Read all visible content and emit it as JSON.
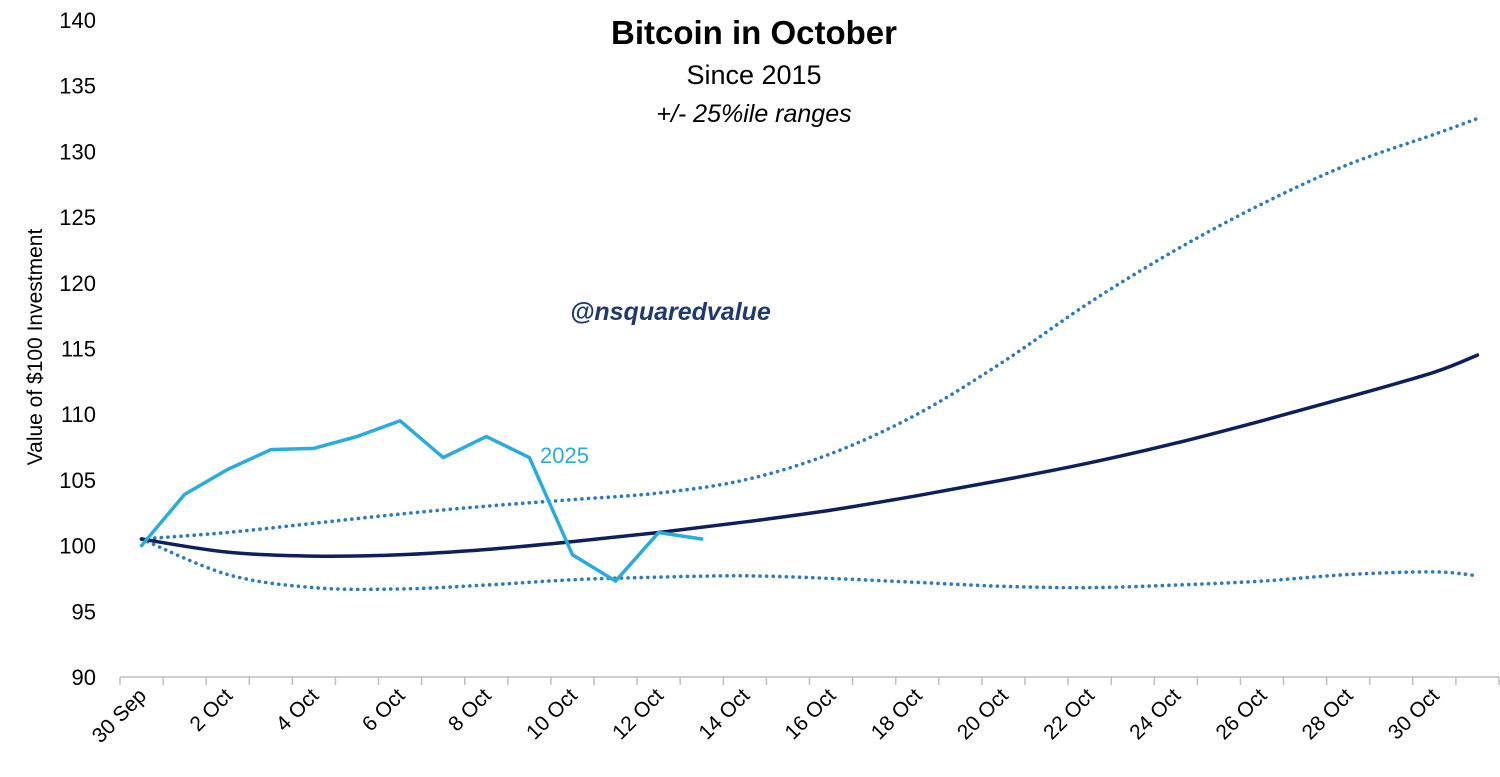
{
  "chart_data": {
    "type": "line",
    "title": "Bitcoin in October",
    "subtitle": "Since 2015",
    "note": "+/- 25%ile ranges",
    "watermark": "@nsquaredvalue",
    "ylabel": "Value of $100 Investment",
    "xlabel": "",
    "ylim": [
      90,
      140
    ],
    "yticks": [
      90,
      95,
      100,
      105,
      110,
      115,
      120,
      125,
      130,
      135,
      140
    ],
    "xlim": [
      "30 Sep",
      "31 Oct"
    ],
    "xtick_labels": [
      "30 Sep",
      "2 Oct",
      "4 Oct",
      "6 Oct",
      "8 Oct",
      "10 Oct",
      "12 Oct",
      "14 Oct",
      "16 Oct",
      "18 Oct",
      "20 Oct",
      "22 Oct",
      "24 Oct",
      "26 Oct",
      "28 Oct",
      "30 Oct"
    ],
    "grid": false,
    "legend": "none",
    "series": [
      {
        "name": "2025",
        "label_on_chart": "2025",
        "color": "#29abe2",
        "style": "solid",
        "x": [
          "30 Sep",
          "1 Oct",
          "2 Oct",
          "3 Oct",
          "4 Oct",
          "5 Oct",
          "6 Oct",
          "7 Oct",
          "8 Oct",
          "9 Oct",
          "10 Oct",
          "11 Oct",
          "12 Oct",
          "13 Oct"
        ],
        "values": [
          100.0,
          103.9,
          105.8,
          107.3,
          107.4,
          108.3,
          109.5,
          106.7,
          108.3,
          106.7,
          99.3,
          97.3,
          101.0,
          100.5
        ]
      },
      {
        "color": "#0d1f5c",
        "style": "solid",
        "x": [
          "30 Sep",
          "2 Oct",
          "4 Oct",
          "6 Oct",
          "8 Oct",
          "10 Oct",
          "12 Oct",
          "14 Oct",
          "16 Oct",
          "18 Oct",
          "20 Oct",
          "22 Oct",
          "24 Oct",
          "26 Oct",
          "28 Oct",
          "30 Oct",
          "31 Oct"
        ],
        "values": [
          100.5,
          99.5,
          99.2,
          99.3,
          99.7,
          100.3,
          101.0,
          101.8,
          102.7,
          103.8,
          105.0,
          106.3,
          107.8,
          109.5,
          111.3,
          113.2,
          114.5
        ]
      },
      {
        "color": "#2b7bc0",
        "style": "dotted",
        "x": [
          "30 Sep",
          "2 Oct",
          "4 Oct",
          "6 Oct",
          "8 Oct",
          "10 Oct",
          "12 Oct",
          "14 Oct",
          "16 Oct",
          "18 Oct",
          "20 Oct",
          "22 Oct",
          "24 Oct",
          "26 Oct",
          "28 Oct",
          "30 Oct",
          "31 Oct"
        ],
        "values": [
          100.5,
          101.0,
          101.7,
          102.4,
          103.0,
          103.5,
          104.0,
          105.0,
          107.0,
          110.0,
          114.0,
          118.5,
          122.5,
          126.0,
          129.0,
          131.3,
          132.5
        ]
      },
      {
        "color": "#2b7bc0",
        "style": "dotted",
        "x": [
          "30 Sep",
          "2 Oct",
          "4 Oct",
          "6 Oct",
          "8 Oct",
          "10 Oct",
          "12 Oct",
          "14 Oct",
          "16 Oct",
          "18 Oct",
          "20 Oct",
          "22 Oct",
          "24 Oct",
          "26 Oct",
          "28 Oct",
          "30 Oct",
          "31 Oct"
        ],
        "values": [
          100.5,
          97.8,
          96.8,
          96.7,
          97.0,
          97.4,
          97.6,
          97.7,
          97.5,
          97.2,
          96.9,
          96.8,
          97.0,
          97.3,
          97.8,
          98.0,
          97.7
        ]
      }
    ]
  }
}
